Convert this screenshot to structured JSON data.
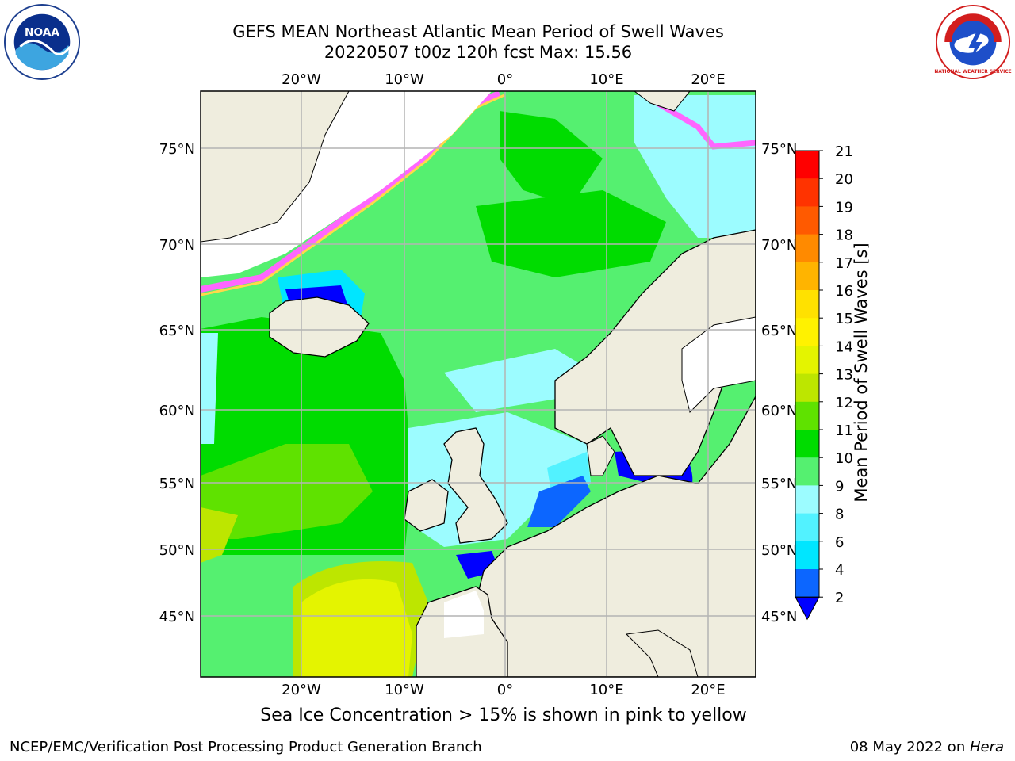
{
  "title": {
    "line1": "GEFS MEAN Northeast Atlantic Mean Period of Swell Waves",
    "line2": "20220507 t00z 120h fcst   Max: 15.56"
  },
  "map": {
    "lon_ticks": [
      "20°W",
      "10°W",
      "0°",
      "10°E",
      "20°E"
    ],
    "lat_ticks": [
      "75°N",
      "70°N",
      "65°N",
      "60°N",
      "55°N",
      "50°N",
      "45°N"
    ],
    "colors": {
      "land": "#efedde",
      "ocean_base": "#55f070",
      "grid": "#b4b4b4"
    }
  },
  "colorbar": {
    "label": "Mean Period of Swell Waves [s]",
    "ticks": [
      "2",
      "4",
      "6",
      "8",
      "9",
      "10",
      "11",
      "12",
      "13",
      "14",
      "15",
      "16",
      "17",
      "18",
      "19",
      "20",
      "21"
    ],
    "colors": [
      "#0c66ff",
      "#00e6ff",
      "#52f2ff",
      "#9cfcff",
      "#55f070",
      "#00dc00",
      "#5fe200",
      "#bde600",
      "#e4f400",
      "#fff200",
      "#ffe100",
      "#ffb400",
      "#ff8a00",
      "#ff5a00",
      "#ff3300",
      "#ff0000"
    ],
    "extend_color": "#0000ff"
  },
  "note": "Sea Ice Concentration > 15% is shown in pink to yellow",
  "footer": {
    "credit": "NCEP/EMC/Verification Post Processing Product Generation Branch",
    "date": "08 May 2022 on ",
    "host": "Hera"
  },
  "logos": {
    "noaa_text": "NOAA",
    "nws_text": "NATIONAL WEATHER SERVICE"
  }
}
